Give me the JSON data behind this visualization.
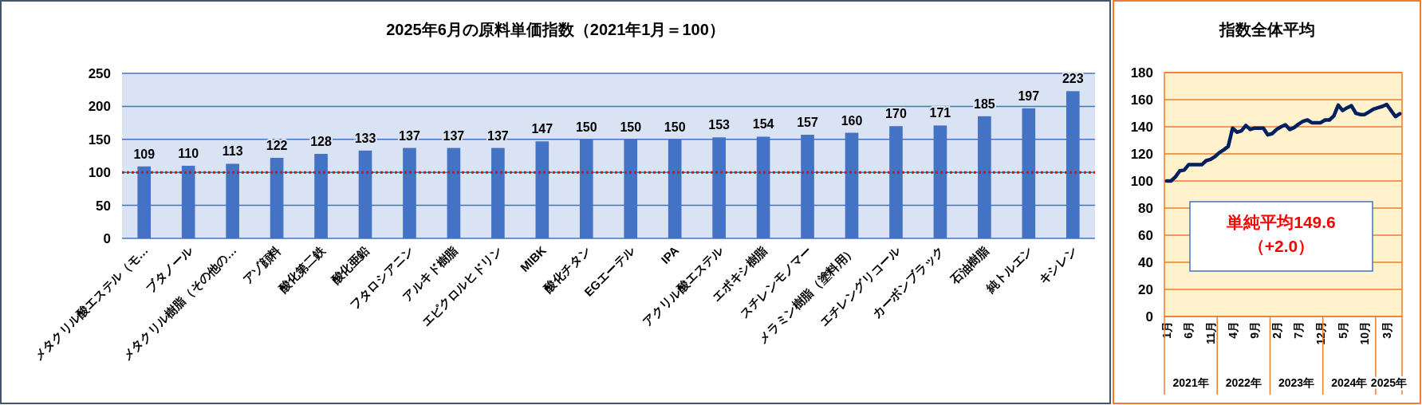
{
  "chart_data": [
    {
      "type": "bar",
      "title": "2025年6月の原料単価指数（2021年1月＝100）",
      "categories": [
        "メタクリル酸エステル（モ…",
        "ブタノール",
        "メタクリル樹脂（その他の…",
        "アゾ顔料",
        "酸化第二鉄",
        "酸化亜鉛",
        "フタロシアニン",
        "アルキド樹脂",
        "エピクロルヒドリン",
        "MIBK",
        "酸化チタン",
        "EGエーテル",
        "IPA",
        "アクリル酸エステル",
        "エポキシ樹脂",
        "スチレンモノマー",
        "メラミン樹脂（塗料用）",
        "エチレングリコール",
        "カーボンブラック",
        "石油樹脂",
        "純トルエン",
        "キシレン"
      ],
      "values": [
        109,
        110,
        113,
        122,
        128,
        133,
        137,
        137,
        137,
        147,
        150,
        150,
        150,
        153,
        154,
        157,
        160,
        170,
        171,
        185,
        197,
        223
      ],
      "color": "#4472c4",
      "ylim": [
        0,
        250
      ],
      "yticks": [
        0,
        50,
        100,
        150,
        200,
        250
      ],
      "grid": "y",
      "data_labels": true,
      "ref_lines": [
        {
          "axis": "y",
          "value": 100,
          "color": "#ff0000",
          "line_style": "dotted"
        }
      ]
    },
    {
      "type": "line",
      "title": "指数全体平均",
      "categories": [
        "1月",
        null,
        null,
        null,
        null,
        "6月",
        null,
        null,
        null,
        null,
        "11月",
        null,
        null,
        null,
        null,
        "4月",
        null,
        null,
        null,
        null,
        "9月",
        null,
        null,
        null,
        null,
        "2月",
        null,
        null,
        null,
        null,
        "7月",
        null,
        null,
        null,
        null,
        "12月",
        null,
        null,
        null,
        null,
        "5月",
        null,
        null,
        null,
        null,
        "10月",
        null,
        null,
        null,
        null,
        "3月",
        null,
        null,
        null
      ],
      "values": [
        100,
        100,
        103,
        107.5,
        108,
        112,
        112,
        112,
        112,
        115,
        116,
        118,
        121,
        123,
        125.5,
        139,
        136,
        137,
        141,
        138,
        139,
        139,
        139,
        134,
        135,
        138,
        140,
        141.5,
        138,
        139.5,
        142,
        144,
        145,
        143,
        143,
        143,
        145,
        145,
        148,
        156,
        152,
        154,
        155.5,
        150,
        149,
        149,
        151,
        153,
        154,
        155,
        156.5,
        152,
        147.5,
        149.6
      ],
      "color": "#002060",
      "ylim": [
        0,
        180
      ],
      "yticks": [
        0,
        20,
        40,
        60,
        80,
        100,
        120,
        140,
        160,
        180
      ],
      "grid": "y",
      "annotations": [
        "単純平均149.6\n（+2.0）",
        "2021年",
        "2022年",
        "2023年",
        "2024年",
        "2025年"
      ]
    }
  ]
}
